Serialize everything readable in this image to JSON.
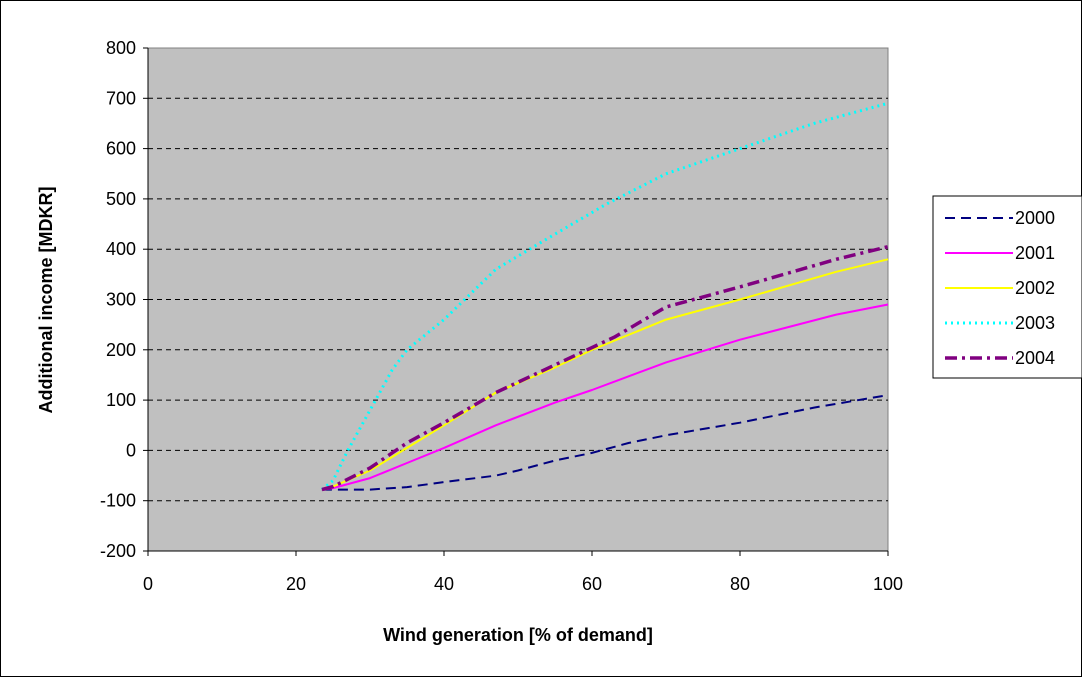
{
  "chart_data": {
    "type": "line",
    "title": "",
    "xlabel": "Wind generation [% of demand]",
    "ylabel": "Additional income [MDKR]",
    "xlim": [
      0,
      100
    ],
    "ylim": [
      -200,
      800
    ],
    "x_ticks": [
      "0",
      "20",
      "40",
      "60",
      "80",
      "100"
    ],
    "y_ticks": [
      "-200",
      "-100",
      "0",
      "100",
      "200",
      "300",
      "400",
      "500",
      "600",
      "700",
      "800"
    ],
    "grid": "horizontal dashed",
    "plot_background": "#c0c0c0",
    "legend_position": "right",
    "series": [
      {
        "name": "2000",
        "color": "#000080",
        "dash": "dashed",
        "x": [
          23.5,
          25,
          30,
          35,
          40,
          47,
          50,
          55,
          60,
          65,
          70,
          80,
          90,
          100
        ],
        "y": [
          -78,
          -78,
          -78,
          -73,
          -63,
          -50,
          -40,
          -20,
          -5,
          15,
          30,
          55,
          85,
          110
        ]
      },
      {
        "name": "2001",
        "color": "#ff00ff",
        "dash": "solid",
        "x": [
          23.5,
          25,
          30,
          35,
          40,
          47,
          55,
          60,
          70,
          80,
          93,
          100
        ],
        "y": [
          -78,
          -75,
          -55,
          -25,
          5,
          50,
          95,
          120,
          175,
          220,
          270,
          290
        ]
      },
      {
        "name": "2002",
        "color": "#ffff00",
        "dash": "solid",
        "x": [
          23.5,
          25,
          30,
          35,
          40,
          47,
          55,
          60,
          70,
          80,
          93,
          100
        ],
        "y": [
          -78,
          -72,
          -40,
          5,
          50,
          115,
          165,
          200,
          260,
          300,
          355,
          380
        ]
      },
      {
        "name": "2003",
        "color": "#00ffff",
        "dash": "dotted",
        "x": [
          23.5,
          25,
          27,
          30,
          33,
          35,
          40,
          47,
          55,
          62,
          70,
          80,
          90,
          100
        ],
        "y": [
          -78,
          -60,
          0,
          80,
          160,
          200,
          260,
          360,
          430,
          490,
          550,
          600,
          650,
          690
        ]
      },
      {
        "name": "2004",
        "color": "#800080",
        "dash": "dashdot",
        "x": [
          23.5,
          25,
          30,
          35,
          40,
          47,
          55,
          63,
          70,
          80,
          93,
          100
        ],
        "y": [
          -78,
          -72,
          -35,
          15,
          55,
          115,
          170,
          225,
          285,
          325,
          380,
          405
        ]
      }
    ]
  }
}
